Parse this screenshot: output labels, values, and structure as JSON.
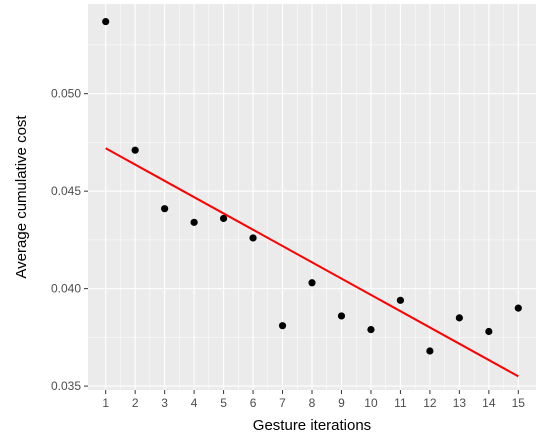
{
  "chart_data": {
    "type": "scatter",
    "xlabel": "Gesture iterations",
    "ylabel": "Average cumulative cost",
    "x_ticks": [
      "1",
      "2",
      "3",
      "4",
      "5",
      "6",
      "7",
      "8",
      "9",
      "10",
      "11",
      "12",
      "13",
      "14",
      "15"
    ],
    "y_ticks": [
      "0.035",
      "0.040",
      "0.045",
      "0.050"
    ],
    "xlim": [
      0.4,
      15.6
    ],
    "ylim": [
      0.0348,
      0.0546
    ],
    "grid": true,
    "points": [
      {
        "x": 1,
        "y": 0.0537
      },
      {
        "x": 2,
        "y": 0.0471
      },
      {
        "x": 3,
        "y": 0.0441
      },
      {
        "x": 4,
        "y": 0.0434
      },
      {
        "x": 5,
        "y": 0.0436
      },
      {
        "x": 6,
        "y": 0.0426
      },
      {
        "x": 7,
        "y": 0.0381
      },
      {
        "x": 8,
        "y": 0.0403
      },
      {
        "x": 9,
        "y": 0.0386
      },
      {
        "x": 10,
        "y": 0.0379
      },
      {
        "x": 11,
        "y": 0.0394
      },
      {
        "x": 12,
        "y": 0.0368
      },
      {
        "x": 13,
        "y": 0.0385
      },
      {
        "x": 14,
        "y": 0.0378
      },
      {
        "x": 15,
        "y": 0.039
      }
    ],
    "trend_line": {
      "x": [
        1,
        15
      ],
      "y": [
        0.0472,
        0.0355
      ]
    },
    "colors": {
      "panel": "#ebebeb",
      "grid": "#ffffff",
      "point": "#000000",
      "trend": "#ff0000"
    }
  }
}
